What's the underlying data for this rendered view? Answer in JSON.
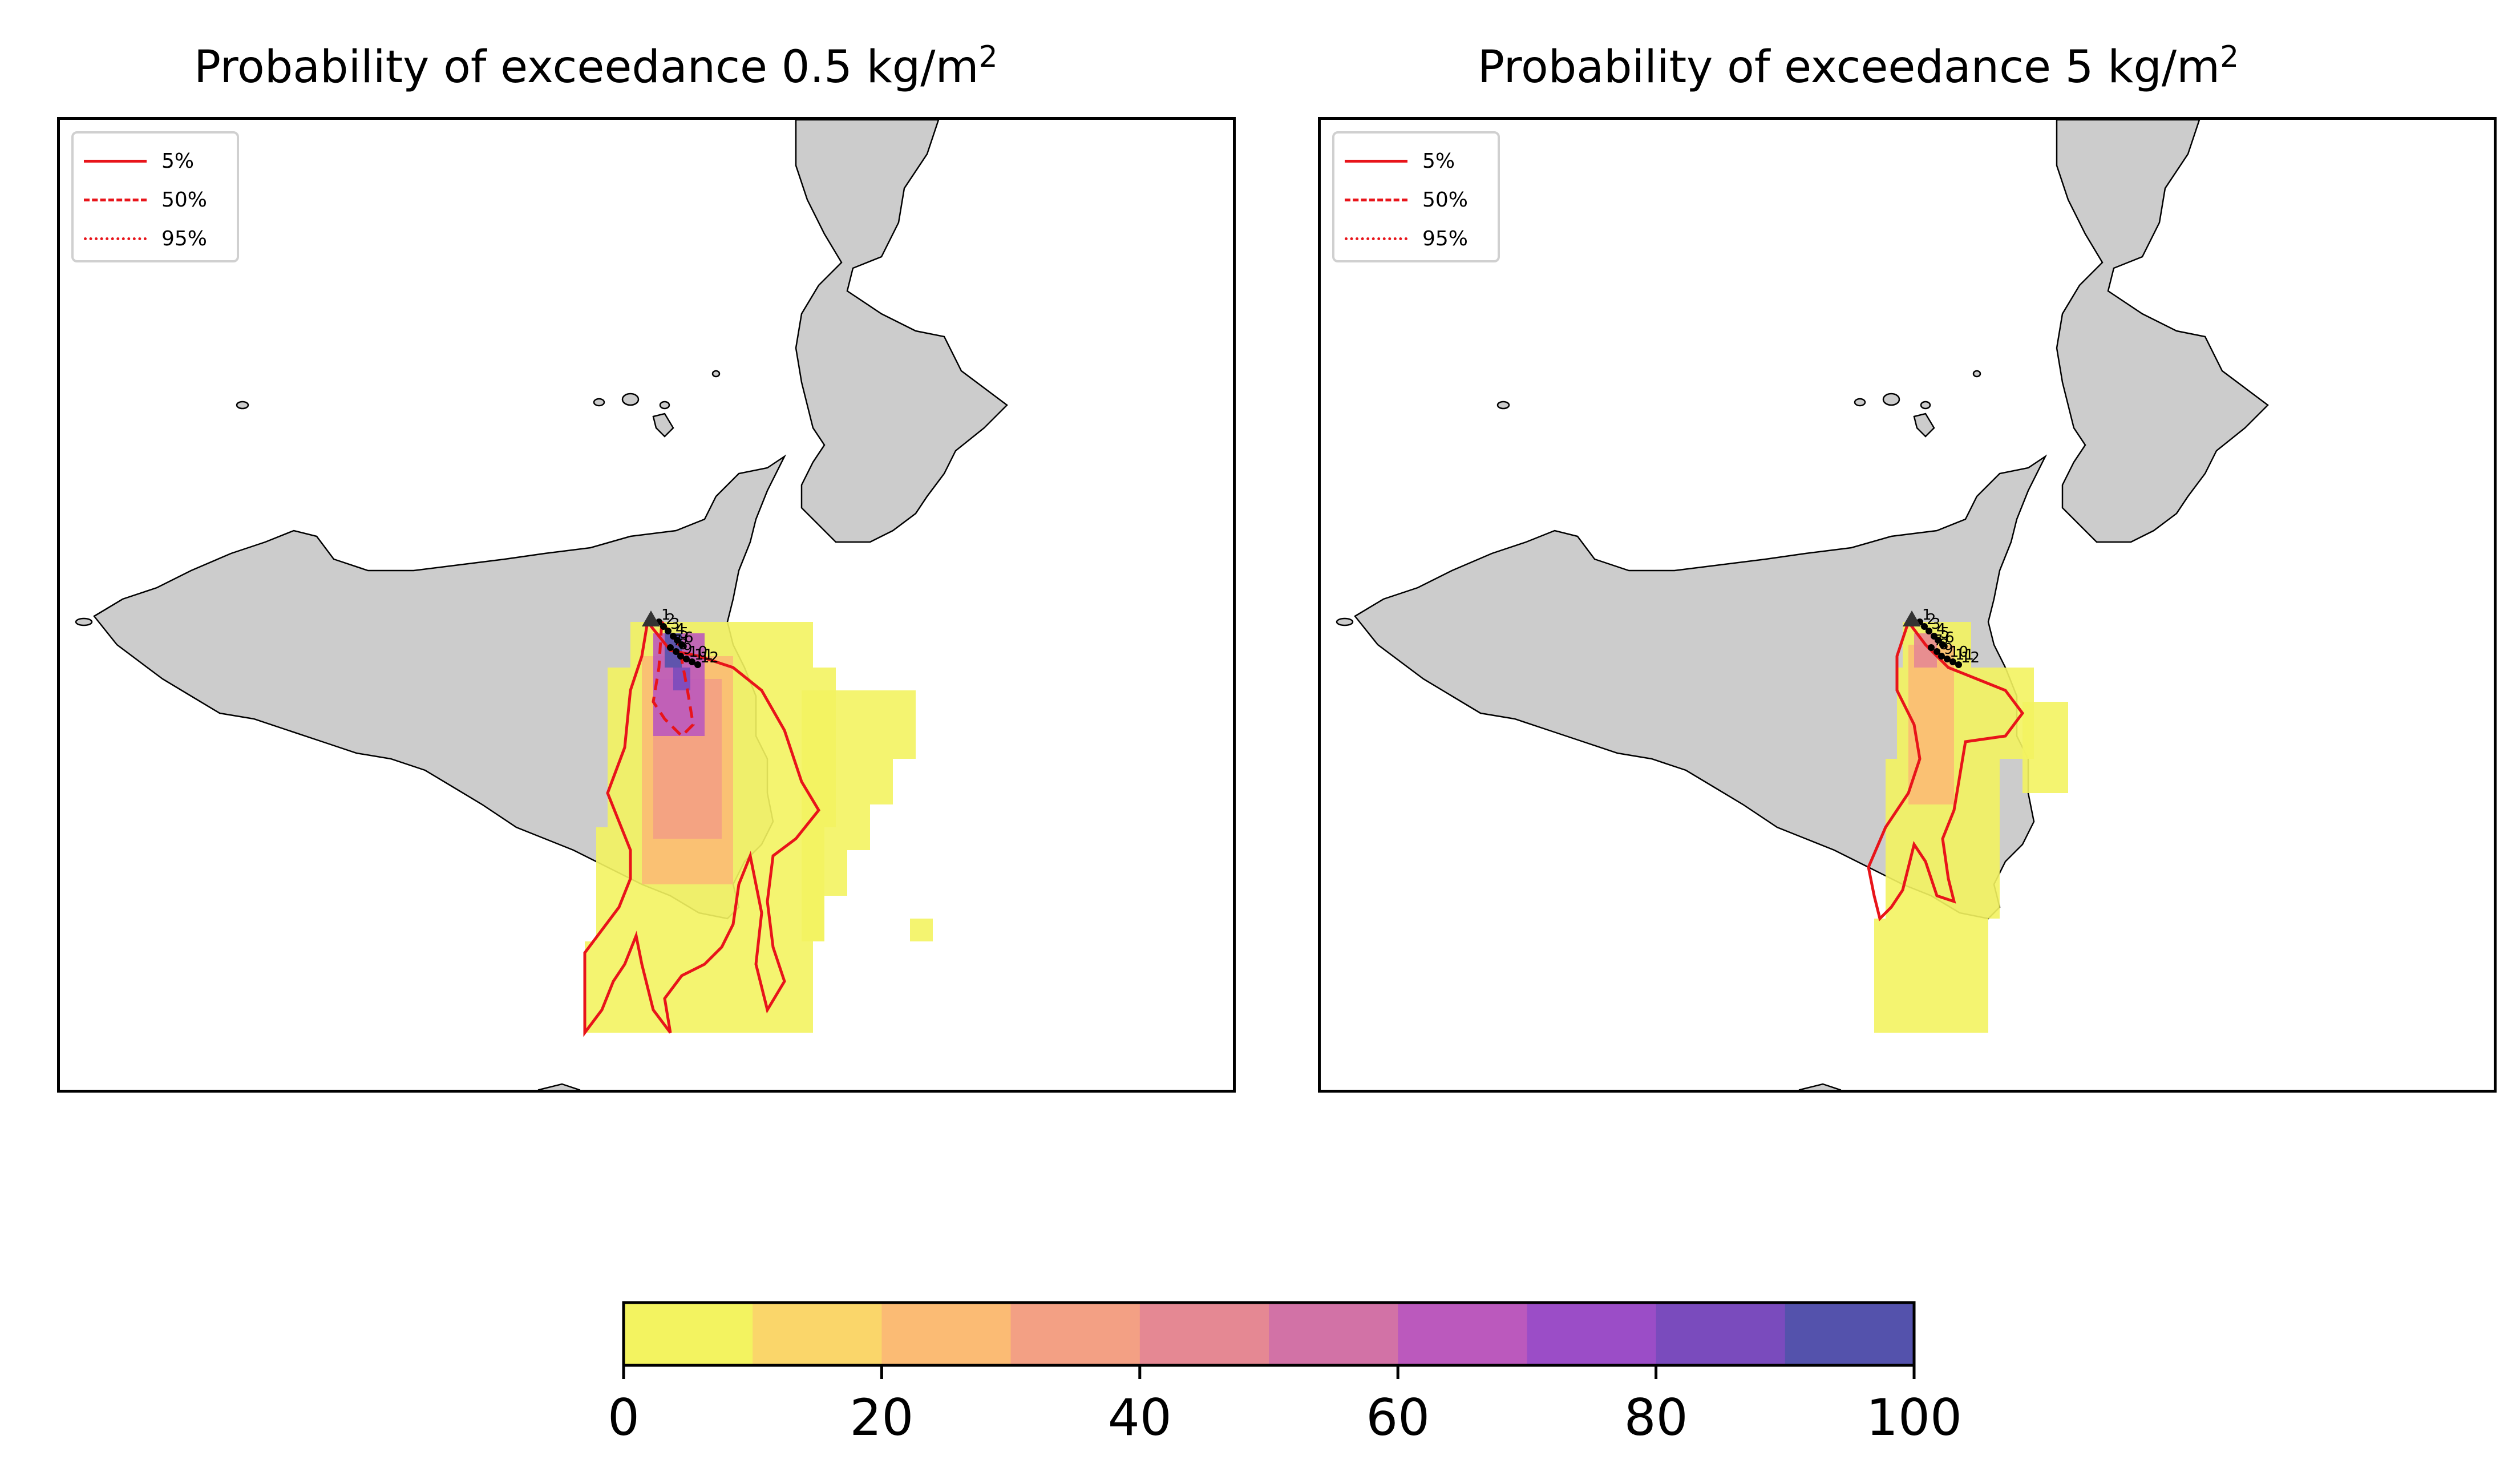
{
  "panels": [
    {
      "title_prefix": "Probability of exceedance 0.5 kg/m",
      "title_sup": "2",
      "legend": [
        {
          "label": "5%",
          "style": "solid"
        },
        {
          "label": "50%",
          "style": "dashed"
        },
        {
          "label": "95%",
          "style": "dotted"
        }
      ],
      "station_labels": [
        "1",
        "2",
        "3",
        "4",
        "5",
        "6",
        "7",
        "8",
        "9",
        "10",
        "11",
        "12"
      ]
    },
    {
      "title_prefix": "Probability of exceedance 5 kg/m",
      "title_sup": "2",
      "legend": [
        {
          "label": "5%",
          "style": "solid"
        },
        {
          "label": "50%",
          "style": "dashed"
        },
        {
          "label": "95%",
          "style": "dotted"
        }
      ],
      "station_labels": [
        "1",
        "2",
        "3",
        "4",
        "5",
        "6",
        "7",
        "8",
        "9",
        "10",
        "11",
        "12"
      ]
    }
  ],
  "colorbar": {
    "ticks": [
      "0",
      "20",
      "40",
      "60",
      "80",
      "100"
    ],
    "colors": [
      "#f3f360",
      "#fad66a",
      "#fbbb74",
      "#f3a084",
      "#e58893",
      "#d272a6",
      "#bb59bd",
      "#9b4dc7",
      "#7a4bbd",
      "#5452ac"
    ]
  },
  "colors": {
    "land": "#cccccc",
    "contour": "#e8141a",
    "frame": "#000000"
  }
}
